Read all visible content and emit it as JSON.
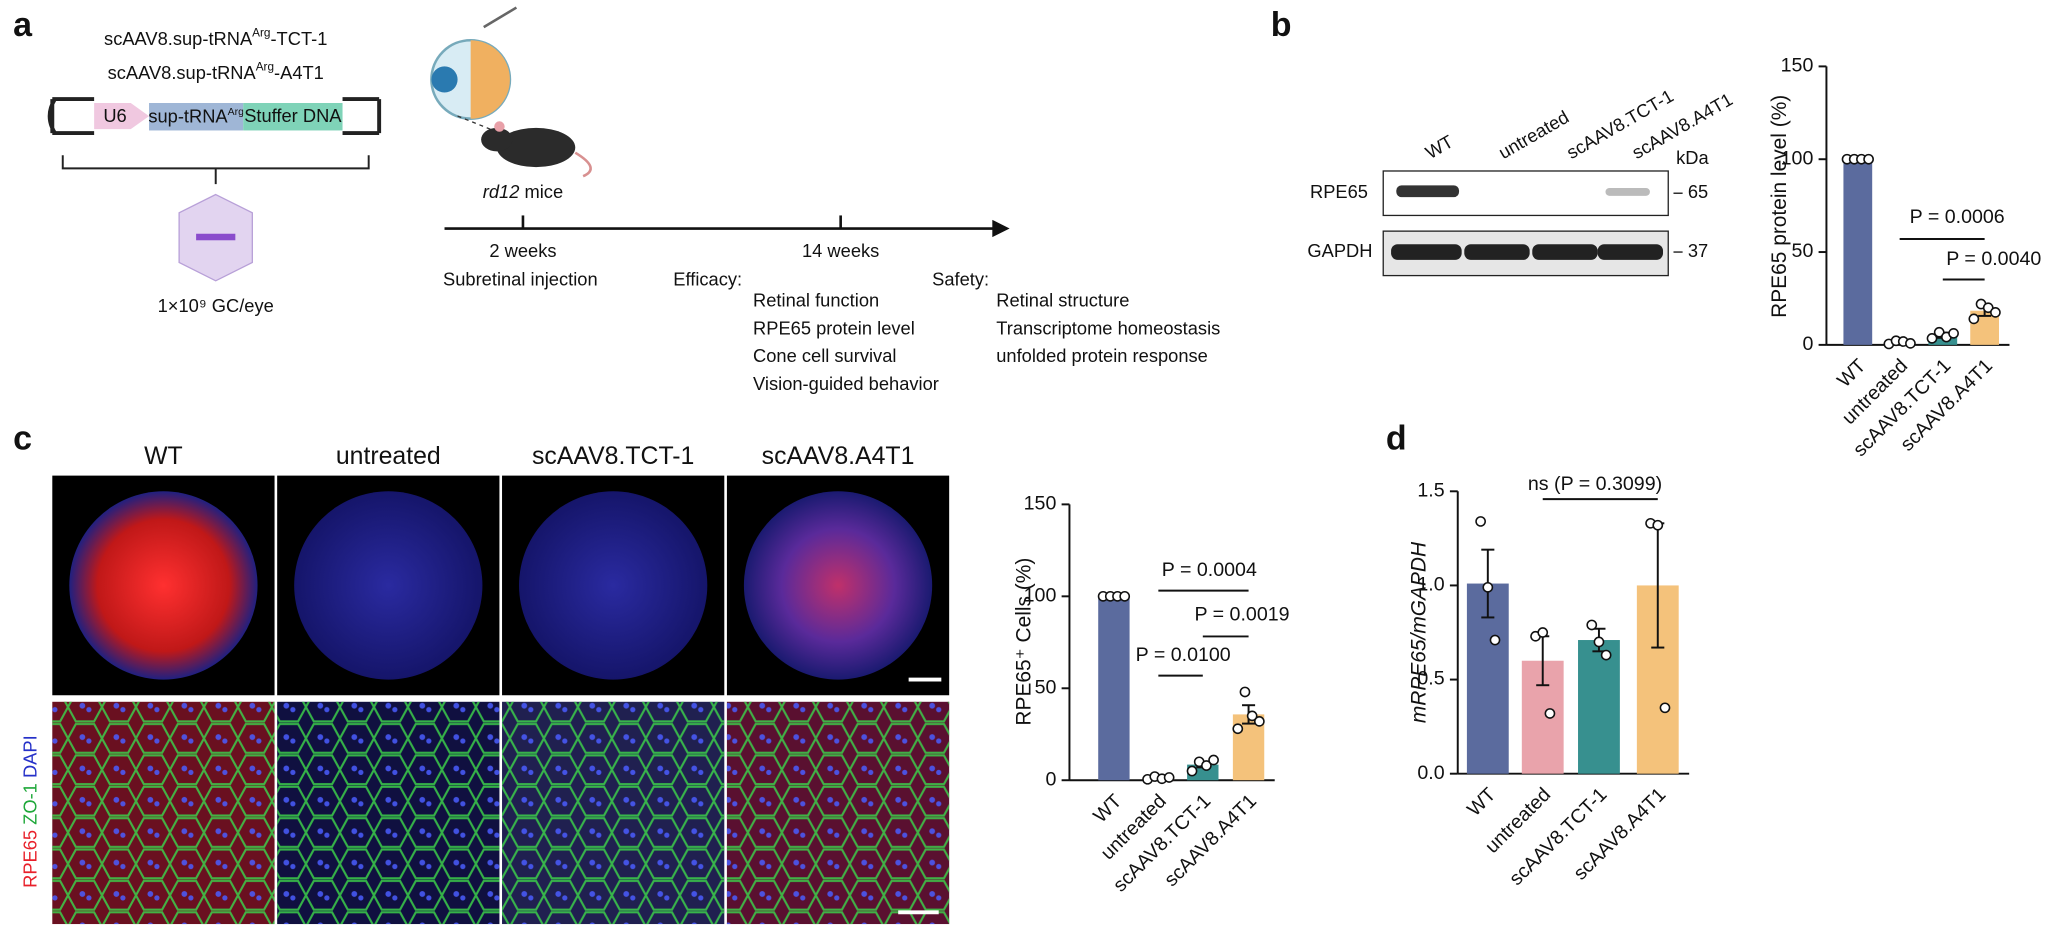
{
  "panel_labels": [
    "a",
    "b",
    "c",
    "d"
  ],
  "schematic": {
    "constructs": [
      {
        "prefix": "scAAV8.sup-tRNA",
        "superscript": "Arg",
        "suffix": "-TCT-1"
      },
      {
        "prefix": "scAAV8.sup-tRNA",
        "superscript": "Arg",
        "suffix": "-A4T1"
      }
    ],
    "promoter": "U6",
    "trna": {
      "text": "sup-tRNA",
      "superscript": "Arg"
    },
    "stuffer": "Stuffer DNA",
    "dose": "1×10⁹ GC/eye",
    "model": {
      "italic": "rd12",
      "text": " mice"
    },
    "timeline": [
      {
        "time": "2 weeks",
        "event": "Subretinal injection"
      },
      {
        "time": "14 weeks"
      }
    ],
    "efficacy": {
      "heading": "Efficacy:",
      "items": [
        "Retinal function",
        "RPE65 protein level",
        "Cone cell survival",
        "Vision-guided behavior"
      ]
    },
    "safety": {
      "heading": "Safety:",
      "items": [
        "Retinal structure",
        "Transcriptome homeostasis",
        "unfolded protein response"
      ]
    }
  },
  "blot": {
    "lanes": [
      "WT",
      "untreated",
      "scAAV8.TCT-1",
      "scAAV8.A4T1"
    ],
    "unit": "kDa",
    "rows": [
      {
        "name": "RPE65",
        "marker": "65"
      },
      {
        "name": "GAPDH",
        "marker": "37"
      }
    ]
  },
  "imaging": {
    "columns": [
      "WT",
      "untreated",
      "scAAV8.TCT-1",
      "scAAV8.A4T1"
    ],
    "stain": [
      {
        "text": "RPE65",
        "color": "#e8202a"
      },
      {
        "text": "ZO-1",
        "color": "#1fa83a"
      },
      {
        "text": "DAPI",
        "color": "#2530c8"
      }
    ]
  },
  "chart_data": [
    {
      "type": "bar",
      "ylabel": "RPE65 protein level (%)",
      "categories": [
        "WT",
        "untreated",
        "scAAV8.TCT-1",
        "scAAV8.A4T1"
      ],
      "colors": [
        "#5b6b9e",
        "#e9a3ab",
        "#37908f",
        "#f4c27b"
      ],
      "values": [
        100,
        1.3,
        5.2,
        18.4
      ],
      "errors": [
        0,
        0.6,
        1.4,
        2.8
      ],
      "points": [
        [
          100,
          100,
          100,
          100
        ],
        [
          0.5,
          2.2,
          1.8,
          0.8
        ],
        [
          3.5,
          6.8,
          4.2,
          6.2
        ],
        [
          14,
          22,
          20,
          17.5
        ]
      ],
      "ylim": [
        0,
        150
      ],
      "yticks": [
        0,
        50,
        100,
        150
      ],
      "annotations": [
        "P = 0.0006",
        "P = 0.0040"
      ]
    },
    {
      "type": "bar",
      "ylabel": "RPE65⁺ Cells (%)",
      "categories": [
        "WT",
        "untreated",
        "scAAV8.TCT-1",
        "scAAV8.A4T1"
      ],
      "colors": [
        "#5b6b9e",
        "#e9a3ab",
        "#37908f",
        "#f4c27b"
      ],
      "values": [
        100,
        1.2,
        8.5,
        35.8
      ],
      "errors": [
        0.3,
        0.5,
        1.5,
        5
      ],
      "points": [
        [
          100,
          100,
          100,
          100
        ],
        [
          0.5,
          2,
          0.8,
          1.5
        ],
        [
          5,
          10,
          8,
          11
        ],
        [
          28,
          48,
          35,
          32
        ]
      ],
      "ylim": [
        0,
        150
      ],
      "yticks": [
        0,
        50,
        100,
        150
      ],
      "annotations": [
        "P = 0.0004",
        "P = 0.0019",
        "P = 0.0100"
      ]
    },
    {
      "type": "bar",
      "ylabel": "mRPE65/mGAPDH",
      "categories": [
        "WT",
        "untreated",
        "scAAV8.TCT-1",
        "scAAV8.A4T1"
      ],
      "colors": [
        "#5b6b9e",
        "#e9a3ab",
        "#37908f",
        "#f4c27b"
      ],
      "values": [
        1.01,
        0.6,
        0.71,
        1.0
      ],
      "errors": [
        0.18,
        0.13,
        0.06,
        0.33
      ],
      "points": [
        [
          1.34,
          0.99,
          0.71
        ],
        [
          0.73,
          0.75,
          0.32
        ],
        [
          0.79,
          0.7,
          0.63
        ],
        [
          1.33,
          1.32,
          0.35
        ]
      ],
      "ylim": [
        0,
        1.5
      ],
      "yticks": [
        {
          "value": 0,
          "label": "0.0"
        },
        0.5,
        {
          "value": 1,
          "label": "1.0"
        },
        {
          "value": 1.5,
          "label": "1.5"
        }
      ],
      "annotations": [
        "ns (P = 0.3099)"
      ]
    }
  ]
}
